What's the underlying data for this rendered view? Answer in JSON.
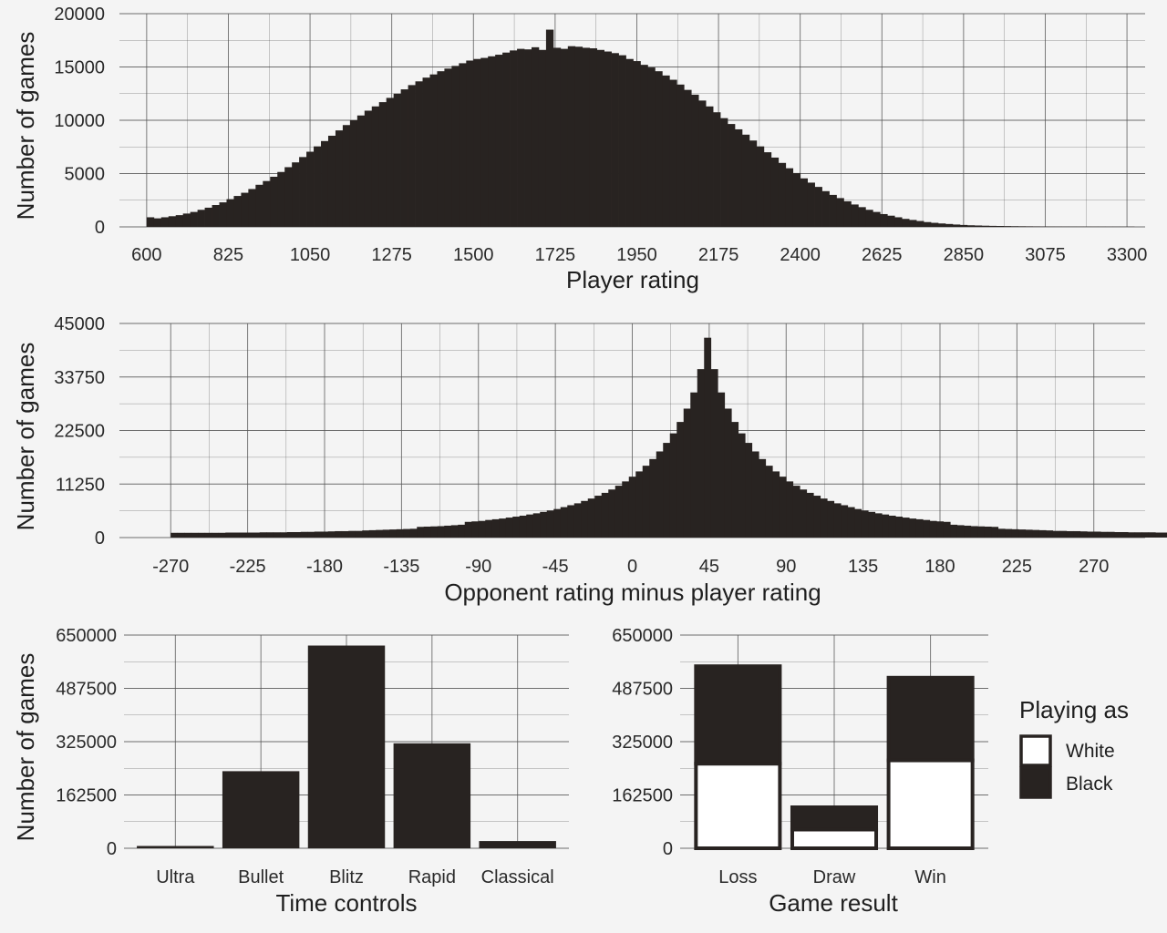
{
  "chart_data": [
    {
      "id": "rating",
      "type": "bar",
      "subtype": "histogram",
      "xlabel": "Player rating",
      "ylabel": "Number of games",
      "xlim": [
        525,
        3350
      ],
      "ylim": [
        0,
        20000
      ],
      "x_ticks": [
        600,
        825,
        1050,
        1275,
        1500,
        1725,
        1950,
        2175,
        2400,
        2625,
        2850,
        3075,
        3300
      ],
      "y_ticks": [
        0,
        5000,
        10000,
        15000,
        20000
      ],
      "grid": true,
      "bins": {
        "start": 600,
        "width": 20,
        "values": [
          900,
          800,
          900,
          1000,
          1100,
          1250,
          1400,
          1600,
          1800,
          2050,
          2300,
          2600,
          2900,
          3200,
          3550,
          3950,
          4300,
          4700,
          5150,
          5600,
          6050,
          6550,
          7050,
          7550,
          8050,
          8550,
          9050,
          9550,
          10000,
          10450,
          10900,
          11300,
          11700,
          12100,
          12500,
          12900,
          13300,
          13650,
          14000,
          14300,
          14600,
          14850,
          15100,
          15350,
          15600,
          15750,
          15850,
          16000,
          16150,
          16350,
          16550,
          16700,
          16650,
          16850,
          16600,
          18500,
          16800,
          16700,
          16950,
          16900,
          16800,
          16750,
          16600,
          16450,
          16300,
          16100,
          15750,
          15550,
          15200,
          14950,
          14600,
          14200,
          13800,
          13350,
          12850,
          12400,
          11850,
          11300,
          10750,
          10200,
          9650,
          9150,
          8650,
          8100,
          7550,
          7000,
          6500,
          6000,
          5500,
          5050,
          4550,
          4150,
          3750,
          3350,
          3000,
          2700,
          2400,
          2100,
          1850,
          1600,
          1400,
          1200,
          1050,
          900,
          750,
          650,
          550,
          450,
          380,
          320,
          270,
          220,
          180,
          150,
          130,
          110,
          95,
          85,
          75,
          65,
          58,
          52,
          47,
          43,
          40,
          37,
          35,
          33,
          31,
          29,
          28,
          27,
          26,
          25,
          24,
          23
        ]
      }
    },
    {
      "id": "diff",
      "type": "bar",
      "subtype": "histogram",
      "xlabel": "Opponent rating minus player rating",
      "ylabel": "Number of games",
      "xlim": [
        -300,
        300
      ],
      "ylim": [
        0,
        45000
      ],
      "x_ticks": [
        -270,
        -225,
        -180,
        -135,
        -90,
        -45,
        0,
        45,
        90,
        135,
        180,
        225,
        270
      ],
      "y_ticks": [
        0,
        11250,
        22500,
        33750,
        45000
      ],
      "grid": true,
      "bins": {
        "start": -270,
        "width": 4,
        "values": [
          1000,
          1000,
          1000,
          1000,
          1000,
          1000,
          1000,
          1000,
          1050,
          1050,
          1050,
          1050,
          1050,
          1100,
          1100,
          1100,
          1100,
          1150,
          1150,
          1200,
          1200,
          1250,
          1250,
          1300,
          1350,
          1350,
          1400,
          1400,
          1500,
          1550,
          1600,
          1650,
          1700,
          1750,
          1800,
          1850,
          2250,
          2300,
          2350,
          2400,
          2500,
          2600,
          2700,
          3300,
          3400,
          3500,
          3700,
          3850,
          4000,
          4200,
          4400,
          4600,
          4850,
          5100,
          5400,
          5700,
          6000,
          6400,
          6800,
          7200,
          7700,
          8200,
          8800,
          9400,
          10100,
          10900,
          11800,
          12800,
          13900,
          15100,
          16500,
          18100,
          19900,
          21900,
          24300,
          27100,
          30500,
          35400,
          42000,
          35400,
          30500,
          27100,
          24300,
          21900,
          19900,
          18100,
          16500,
          15100,
          13900,
          12800,
          11800,
          10900,
          10100,
          9400,
          8800,
          8200,
          7700,
          7200,
          6800,
          6400,
          6000,
          5700,
          5400,
          5100,
          4850,
          4600,
          4400,
          4200,
          4000,
          3850,
          3700,
          3500,
          3400,
          3300,
          2700,
          2600,
          2500,
          2400,
          2350,
          2300,
          2250,
          1850,
          1800,
          1750,
          1700,
          1650,
          1600,
          1550,
          1500,
          1400,
          1400,
          1350,
          1350,
          1300,
          1250,
          1250,
          1200,
          1200,
          1150,
          1150,
          1100,
          1100,
          1100,
          1100,
          1050,
          1050,
          1050,
          1050,
          1050,
          1000,
          1000,
          1000,
          1000,
          1000,
          1000,
          1000,
          1000
        ]
      }
    },
    {
      "id": "time",
      "type": "bar",
      "xlabel": "Time controls",
      "ylabel": "Number of games",
      "ylim": [
        0,
        650000
      ],
      "y_ticks": [
        0,
        162500,
        325000,
        487500,
        650000
      ],
      "grid": true,
      "categories": [
        "Ultra",
        "Bullet",
        "Blitz",
        "Rapid",
        "Classical"
      ],
      "values": [
        7000,
        235000,
        618000,
        320000,
        22000
      ]
    },
    {
      "id": "result",
      "type": "bar",
      "subtype": "stacked",
      "xlabel": "Game result",
      "ylim": [
        0,
        650000
      ],
      "y_ticks": [
        0,
        162500,
        325000,
        487500,
        650000
      ],
      "grid": true,
      "categories": [
        "Loss",
        "Draw",
        "Win"
      ],
      "series": [
        {
          "name": "White",
          "values": [
            258000,
            57000,
            268000
          ],
          "fill": "#ffffff"
        },
        {
          "name": "Black",
          "values": [
            297000,
            68000,
            252000
          ],
          "fill": "#282321"
        }
      ],
      "legend": {
        "title": "Playing as",
        "position": "right"
      }
    }
  ],
  "colors": {
    "bar": "#282321",
    "bar_outline": "#282321",
    "white_fill": "#ffffff",
    "grid": "#555555",
    "background": "#f4f4f4"
  }
}
